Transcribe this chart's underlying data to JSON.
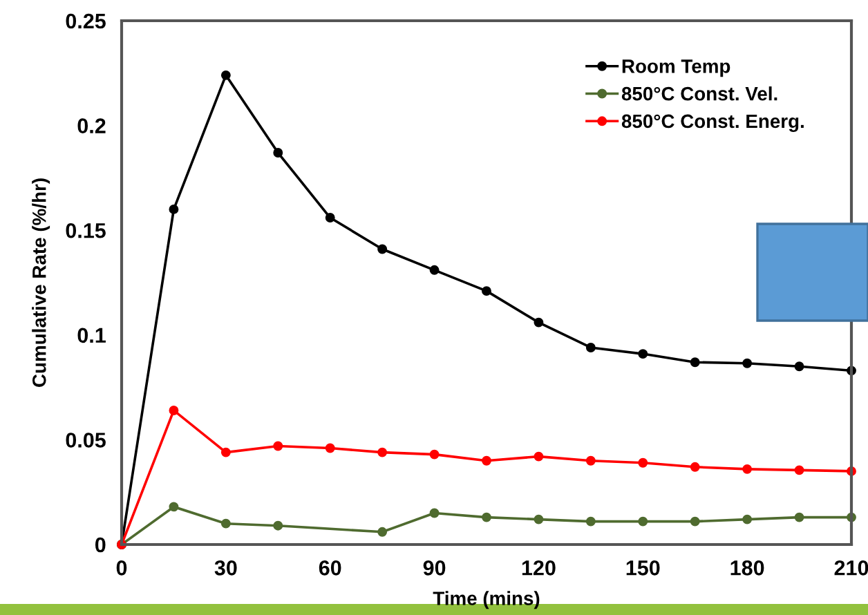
{
  "chart_data": {
    "type": "line",
    "xlabel": "Time (mins)",
    "ylabel": "Cumulative Rate (%/hr)",
    "x": [
      0,
      15,
      30,
      45,
      60,
      75,
      90,
      105,
      120,
      135,
      150,
      165,
      180,
      195,
      210
    ],
    "series": [
      {
        "name": "Room Temp",
        "color": "#000000",
        "values": [
          0,
          0.16,
          0.224,
          0.187,
          0.156,
          0.141,
          0.131,
          0.121,
          0.106,
          0.094,
          0.091,
          0.087,
          0.0865,
          0.085,
          0.083
        ]
      },
      {
        "name": "850°C Const. Vel.",
        "color": "#4f6b2f",
        "x": [
          0,
          15,
          30,
          45,
          75,
          90,
          105,
          120,
          135,
          150,
          165,
          180,
          195,
          210
        ],
        "values": [
          0,
          0.018,
          0.01,
          0.009,
          0.006,
          0.015,
          0.013,
          0.012,
          0.011,
          0.011,
          0.011,
          0.012,
          0.013,
          0.013
        ]
      },
      {
        "name": "850°C Const. Energ.",
        "color": "#ff0000",
        "values": [
          0,
          0.064,
          0.044,
          0.047,
          0.046,
          0.044,
          0.043,
          0.04,
          0.042,
          0.04,
          0.039,
          0.037,
          0.036,
          0.0355,
          0.035
        ]
      }
    ],
    "xlim": [
      0,
      210
    ],
    "xticks": [
      0,
      30,
      60,
      90,
      120,
      150,
      180,
      210
    ],
    "ylim": [
      0,
      0.25
    ],
    "yticks": [
      0,
      0.05,
      0.1,
      0.15,
      0.2,
      0.25
    ],
    "grid": false,
    "legend": "top right",
    "marker": "circle",
    "line_style": "solid"
  }
}
